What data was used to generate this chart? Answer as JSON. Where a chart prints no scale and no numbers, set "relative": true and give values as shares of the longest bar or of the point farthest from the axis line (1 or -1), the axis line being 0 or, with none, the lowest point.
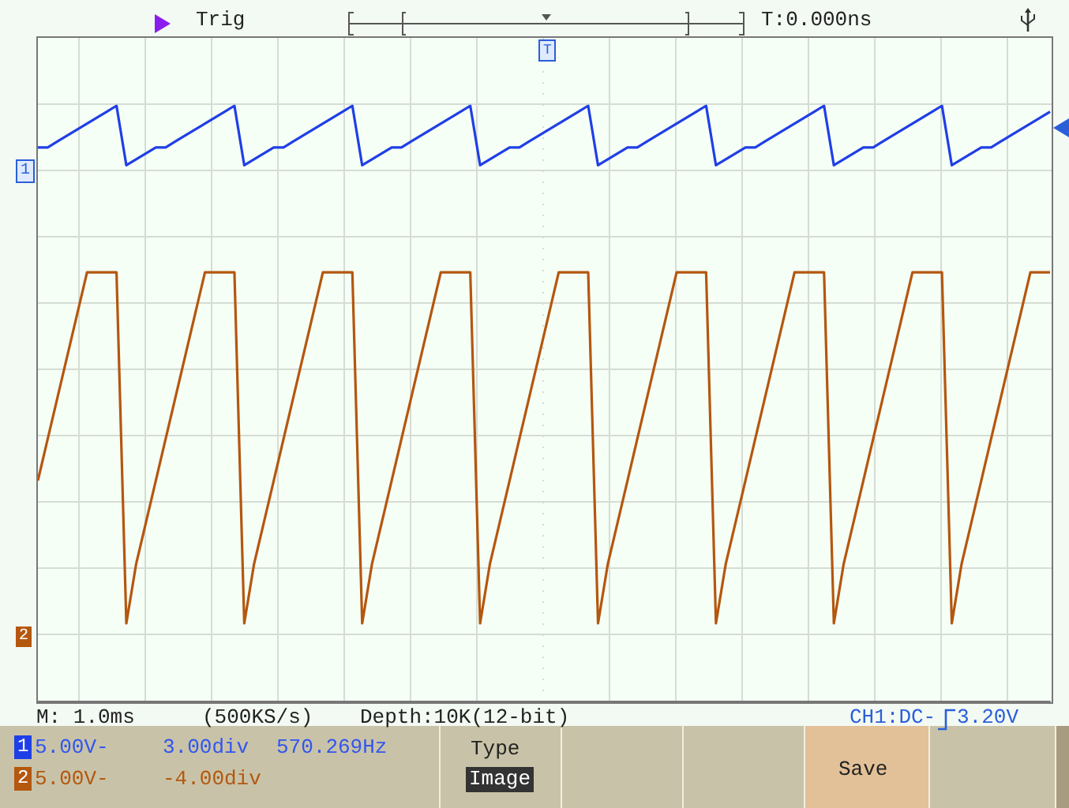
{
  "chart_data": {
    "type": "line",
    "relative": true,
    "grid": true,
    "marker": "none",
    "line_style": "solid",
    "categories": [
      null,
      null,
      null,
      null,
      null,
      null,
      null,
      null,
      null,
      null,
      null,
      null,
      null,
      null,
      null,
      null,
      null,
      null,
      null,
      null,
      null,
      null,
      null,
      null,
      null,
      null,
      null,
      null,
      null,
      null,
      null,
      null,
      null,
      null,
      null,
      null,
      null,
      null,
      null,
      null,
      null,
      null,
      null,
      null,
      null,
      null,
      null,
      null,
      null,
      null,
      null,
      null,
      null,
      null,
      null,
      null,
      null,
      null,
      null,
      null,
      null,
      null,
      null,
      null,
      null,
      null,
      null,
      null,
      null,
      null,
      null,
      null,
      null,
      null,
      null,
      null,
      null,
      null,
      null,
      null,
      null,
      null,
      null,
      null,
      null,
      null,
      null,
      null,
      null,
      null,
      null,
      null,
      null,
      null,
      null,
      null,
      null,
      null,
      null,
      null,
      null,
      null,
      null,
      null
    ],
    "series": [
      {
        "color": "#1f3fe6",
        "values": [
          0.93,
          0.93,
          0.94,
          0.95,
          0.96,
          0.97,
          0.98,
          0.99,
          1.0,
          0.9,
          0.91,
          0.92,
          0.93,
          0.93,
          0.94,
          0.95,
          0.96,
          0.97,
          0.98,
          0.99,
          1.0,
          0.9,
          0.91,
          0.92,
          0.93,
          0.93,
          0.94,
          0.95,
          0.96,
          0.97,
          0.98,
          0.99,
          1.0,
          0.9,
          0.91,
          0.92,
          0.93,
          0.93,
          0.94,
          0.95,
          0.96,
          0.97,
          0.98,
          0.99,
          1.0,
          0.9,
          0.91,
          0.92,
          0.93,
          0.93,
          0.94,
          0.95,
          0.96,
          0.97,
          0.98,
          0.99,
          1.0,
          0.9,
          0.91,
          0.92,
          0.93,
          0.93,
          0.94,
          0.95,
          0.96,
          0.97,
          0.98,
          0.99,
          1.0,
          0.9,
          0.91,
          0.92,
          0.93,
          0.93,
          0.94,
          0.95,
          0.96,
          0.97,
          0.98,
          0.99,
          1.0,
          0.9,
          0.91,
          0.92,
          0.93,
          0.93,
          0.94,
          0.95,
          0.96,
          0.97,
          0.98,
          0.99,
          1.0,
          0.9,
          0.91,
          0.92,
          0.93,
          0.93,
          0.94,
          0.95,
          0.96,
          0.97,
          0.98,
          0.99
        ]
      },
      {
        "color": "#b4570f",
        "values": [
          0.37,
          0.44,
          0.51,
          0.58,
          0.65,
          0.72,
          0.72,
          0.72,
          0.72,
          0.13,
          0.23,
          0.3,
          0.37,
          0.44,
          0.51,
          0.58,
          0.65,
          0.72,
          0.72,
          0.72,
          0.72,
          0.13,
          0.23,
          0.3,
          0.37,
          0.44,
          0.51,
          0.58,
          0.65,
          0.72,
          0.72,
          0.72,
          0.72,
          0.13,
          0.23,
          0.3,
          0.37,
          0.44,
          0.51,
          0.58,
          0.65,
          0.72,
          0.72,
          0.72,
          0.72,
          0.13,
          0.23,
          0.3,
          0.37,
          0.44,
          0.51,
          0.58,
          0.65,
          0.72,
          0.72,
          0.72,
          0.72,
          0.13,
          0.23,
          0.3,
          0.37,
          0.44,
          0.51,
          0.58,
          0.65,
          0.72,
          0.72,
          0.72,
          0.72,
          0.13,
          0.23,
          0.3,
          0.37,
          0.44,
          0.51,
          0.58,
          0.65,
          0.72,
          0.72,
          0.72,
          0.72,
          0.13,
          0.23,
          0.3,
          0.37,
          0.44,
          0.51,
          0.58,
          0.65,
          0.72,
          0.72,
          0.72,
          0.72,
          0.13,
          0.23,
          0.3,
          0.37,
          0.44,
          0.51,
          0.58,
          0.65,
          0.72,
          0.72,
          0.72
        ]
      }
    ],
    "annotations": [
      "Trig",
      "T:0.000ns",
      "T",
      "1",
      "2",
      "M: 1.0ms",
      "(500KS/s)",
      "Depth:10K(12-bit)",
      "CH1:DC-",
      "3.20V",
      "1",
      "5.00V-",
      "3.00div",
      "570.269Hz",
      "2",
      "5.00V-",
      "-4.00div",
      "Type",
      "Image",
      "Save"
    ]
  }
}
